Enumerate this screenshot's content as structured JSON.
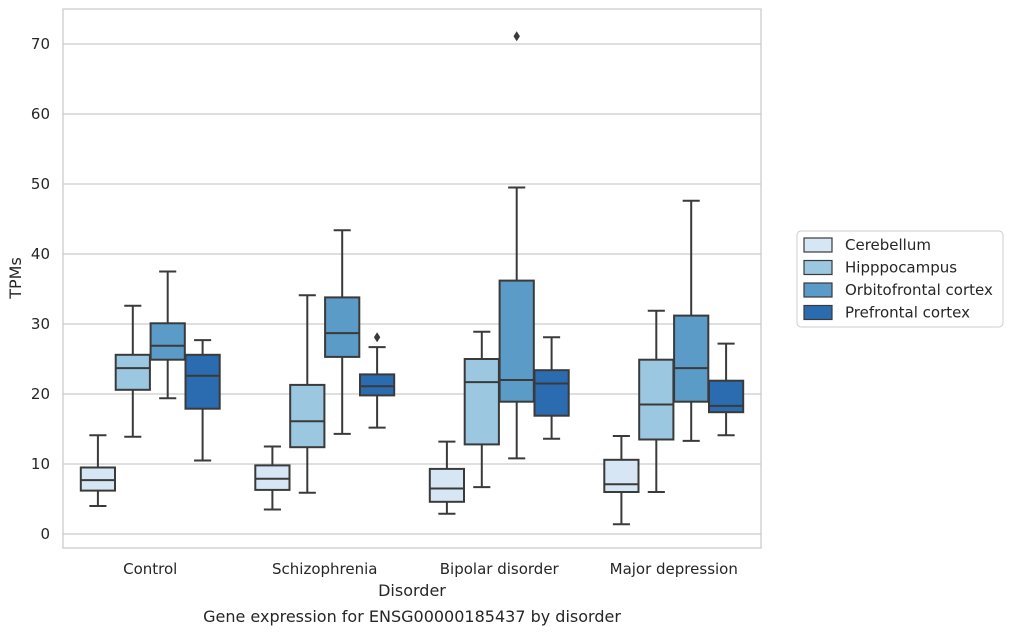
{
  "chart_data": {
    "type": "box",
    "caption": "Gene expression for ENSG00000185437 by disorder",
    "xlabel": "Disorder",
    "ylabel": "TPMs",
    "ylim": [
      -2,
      75
    ],
    "yticks": [
      0,
      10,
      20,
      30,
      40,
      50,
      60,
      70
    ],
    "grid": true,
    "legend_position": "right",
    "categories": [
      "Control",
      "Schizophrenia",
      "Bipolar disorder",
      "Major depression"
    ],
    "series": [
      {
        "name": "Cerebellum",
        "color": "#d7e6f4",
        "boxes": [
          {
            "whisker_low": 4.0,
            "q1": 6.2,
            "median": 7.7,
            "q3": 9.5,
            "whisker_high": 14.1,
            "outliers": []
          },
          {
            "whisker_low": 3.5,
            "q1": 6.3,
            "median": 7.9,
            "q3": 9.8,
            "whisker_high": 12.5,
            "outliers": []
          },
          {
            "whisker_low": 2.9,
            "q1": 4.6,
            "median": 6.5,
            "q3": 9.3,
            "whisker_high": 13.2,
            "outliers": []
          },
          {
            "whisker_low": 1.4,
            "q1": 6.0,
            "median": 7.1,
            "q3": 10.6,
            "whisker_high": 14.0,
            "outliers": []
          }
        ]
      },
      {
        "name": "Hipppocampus",
        "color": "#9bc7e1",
        "boxes": [
          {
            "whisker_low": 13.9,
            "q1": 20.6,
            "median": 23.7,
            "q3": 25.6,
            "whisker_high": 32.6,
            "outliers": []
          },
          {
            "whisker_low": 5.9,
            "q1": 12.4,
            "median": 16.1,
            "q3": 21.3,
            "whisker_high": 34.1,
            "outliers": []
          },
          {
            "whisker_low": 6.7,
            "q1": 12.8,
            "median": 21.7,
            "q3": 25.0,
            "whisker_high": 28.9,
            "outliers": []
          },
          {
            "whisker_low": 6.0,
            "q1": 13.5,
            "median": 18.5,
            "q3": 24.9,
            "whisker_high": 31.9,
            "outliers": []
          }
        ]
      },
      {
        "name": "Orbitofrontal cortex",
        "color": "#5a9bc8",
        "boxes": [
          {
            "whisker_low": 19.4,
            "q1": 24.9,
            "median": 26.9,
            "q3": 30.1,
            "whisker_high": 37.5,
            "outliers": []
          },
          {
            "whisker_low": 14.3,
            "q1": 25.3,
            "median": 28.7,
            "q3": 33.8,
            "whisker_high": 43.4,
            "outliers": []
          },
          {
            "whisker_low": 10.8,
            "q1": 18.9,
            "median": 22.0,
            "q3": 36.2,
            "whisker_high": 49.5,
            "outliers": [
              71.1
            ]
          },
          {
            "whisker_low": 13.3,
            "q1": 18.9,
            "median": 23.7,
            "q3": 31.2,
            "whisker_high": 47.6,
            "outliers": []
          }
        ]
      },
      {
        "name": "Prefrontal cortex",
        "color": "#2b6cb0",
        "boxes": [
          {
            "whisker_low": 10.5,
            "q1": 17.9,
            "median": 22.6,
            "q3": 25.6,
            "whisker_high": 27.7,
            "outliers": []
          },
          {
            "whisker_low": 15.2,
            "q1": 19.8,
            "median": 21.1,
            "q3": 22.8,
            "whisker_high": 26.7,
            "outliers": [
              28.1
            ]
          },
          {
            "whisker_low": 13.6,
            "q1": 16.9,
            "median": 21.5,
            "q3": 23.4,
            "whisker_high": 28.1,
            "outliers": []
          },
          {
            "whisker_low": 14.1,
            "q1": 17.4,
            "median": 18.3,
            "q3": 21.9,
            "whisker_high": 27.2,
            "outliers": []
          }
        ]
      }
    ]
  }
}
